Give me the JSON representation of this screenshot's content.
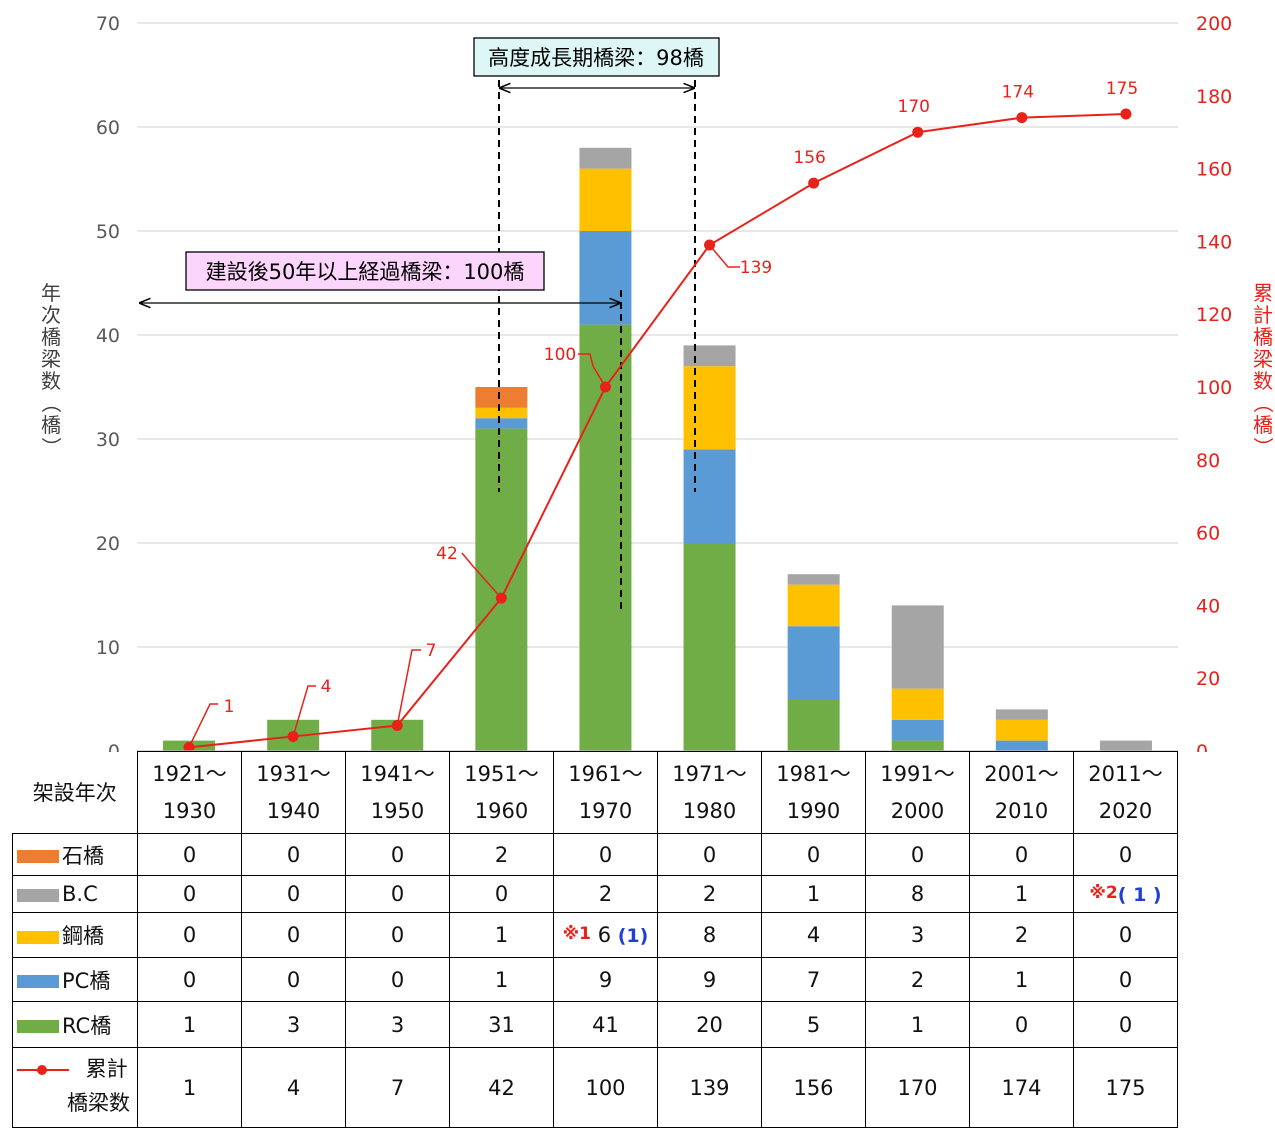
{
  "chart_data": {
    "type": "bar",
    "stacked": true,
    "categories": [
      "1921〜1930",
      "1931〜1940",
      "1941〜1950",
      "1951〜1960",
      "1961〜1970",
      "1971〜1980",
      "1981〜1990",
      "1991〜2000",
      "2001〜2010",
      "2011〜2020"
    ],
    "category_lines": [
      [
        "1921〜",
        "1930"
      ],
      [
        "1931〜",
        "1940"
      ],
      [
        "1941〜",
        "1950"
      ],
      [
        "1951〜",
        "1960"
      ],
      [
        "1961〜",
        "1970"
      ],
      [
        "1971〜",
        "1980"
      ],
      [
        "1981〜",
        "1990"
      ],
      [
        "1991〜",
        "2000"
      ],
      [
        "2001〜",
        "2010"
      ],
      [
        "2011〜",
        "2020"
      ]
    ],
    "series": [
      {
        "name": "RC橋",
        "color": "#70ad47",
        "values": [
          1,
          3,
          3,
          31,
          41,
          20,
          5,
          1,
          0,
          0
        ]
      },
      {
        "name": "PC橋",
        "color": "#5b9bd5",
        "values": [
          0,
          0,
          0,
          1,
          9,
          9,
          7,
          2,
          1,
          0
        ]
      },
      {
        "name": "鋼橋",
        "color": "#ffc000",
        "values": [
          0,
          0,
          0,
          1,
          6,
          8,
          4,
          3,
          2,
          0
        ]
      },
      {
        "name": "B.C",
        "color": "#a5a5a5",
        "values": [
          0,
          0,
          0,
          0,
          2,
          2,
          1,
          8,
          1,
          1
        ]
      },
      {
        "name": "石橋",
        "color": "#ed7d31",
        "values": [
          0,
          0,
          0,
          2,
          0,
          0,
          0,
          0,
          0,
          0
        ]
      }
    ],
    "line_series": {
      "name": "累計橋梁数",
      "color": "#e8221b",
      "axis": "right",
      "values": [
        1,
        4,
        7,
        42,
        100,
        139,
        156,
        170,
        174,
        175
      ]
    },
    "ylabel": "年次橋梁数（橋）",
    "y2label": "累計橋梁数（橋）",
    "ylim": [
      0,
      70
    ],
    "y2lim": [
      0,
      200
    ],
    "yticks": [
      0,
      10,
      20,
      30,
      40,
      50,
      60,
      70
    ],
    "y2ticks": [
      0,
      20,
      40,
      60,
      80,
      100,
      120,
      140,
      160,
      180,
      200
    ],
    "grid": true,
    "annotations": [
      {
        "text": "高度成長期橋梁：98橋"
      },
      {
        "text": "建設後50年以上経過橋梁：100橋"
      }
    ]
  },
  "table": {
    "header_label": "架設年次",
    "rows": [
      {
        "label": "石橋",
        "color": "#ed7d31",
        "cells": [
          "0",
          "0",
          "0",
          "2",
          "0",
          "0",
          "0",
          "0",
          "0",
          "0"
        ]
      },
      {
        "label": "B.C",
        "color": "#a5a5a5",
        "cells": [
          "0",
          "0",
          "0",
          "0",
          "2",
          "2",
          "1",
          "8",
          "1",
          ""
        ]
      },
      {
        "label": "鋼橋",
        "color": "#ffc000",
        "cells": [
          "0",
          "0",
          "0",
          "1",
          "",
          "8",
          "4",
          "3",
          "2",
          "0"
        ]
      },
      {
        "label": "PC橋",
        "color": "#5b9bd5",
        "cells": [
          "0",
          "0",
          "0",
          "1",
          "9",
          "9",
          "7",
          "2",
          "1",
          "0"
        ]
      },
      {
        "label": "RC橋",
        "color": "#70ad47",
        "cells": [
          "1",
          "3",
          "3",
          "31",
          "41",
          "20",
          "5",
          "1",
          "0",
          "0"
        ]
      }
    ],
    "cumulative": {
      "label_top": "累計",
      "label_bottom": "橋梁数",
      "cells": [
        "1",
        "4",
        "7",
        "42",
        "100",
        "139",
        "156",
        "170",
        "174",
        "175"
      ]
    },
    "notes": {
      "note1_mark": "※1",
      "note1_value": "6",
      "note1_paren": "(1)",
      "note2_mark": "※2",
      "note2_paren": "( 1 )"
    }
  }
}
